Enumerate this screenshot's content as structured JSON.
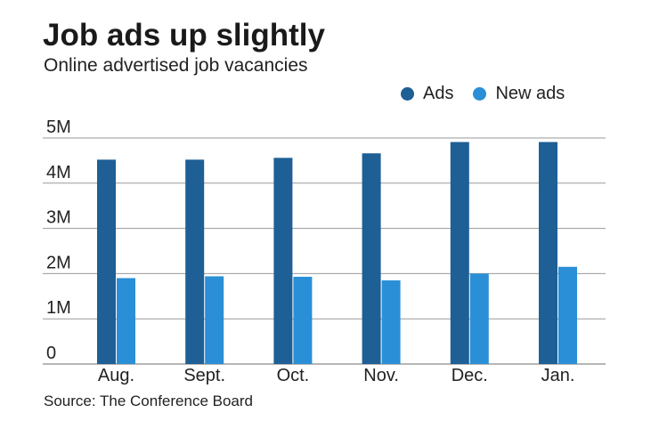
{
  "title": "Job ads up slightly",
  "subtitle": "Online advertised job vacancies",
  "source": "Source: The Conference Board",
  "legend": [
    {
      "label": "Ads",
      "color": "#1e5f95"
    },
    {
      "label": "New ads",
      "color": "#2a8fd6"
    }
  ],
  "chart_data": {
    "type": "bar",
    "categories": [
      "Aug.",
      "Sept.",
      "Oct.",
      "Nov.",
      "Dec.",
      "Jan."
    ],
    "series": [
      {
        "name": "Ads",
        "color": "#1e5f95",
        "values": [
          4.52,
          4.52,
          4.56,
          4.66,
          4.91,
          4.91
        ]
      },
      {
        "name": "New ads",
        "color": "#2a8fd6",
        "values": [
          1.9,
          1.94,
          1.93,
          1.85,
          2.0,
          2.15
        ]
      }
    ],
    "yticks": [
      0,
      1,
      2,
      3,
      4,
      5
    ],
    "ytick_labels": [
      "0",
      "1M",
      "2M",
      "3M",
      "4M",
      "5M"
    ],
    "ylim": [
      0,
      5
    ],
    "unit": "millions",
    "grid": true,
    "legend_position": "top-right"
  }
}
